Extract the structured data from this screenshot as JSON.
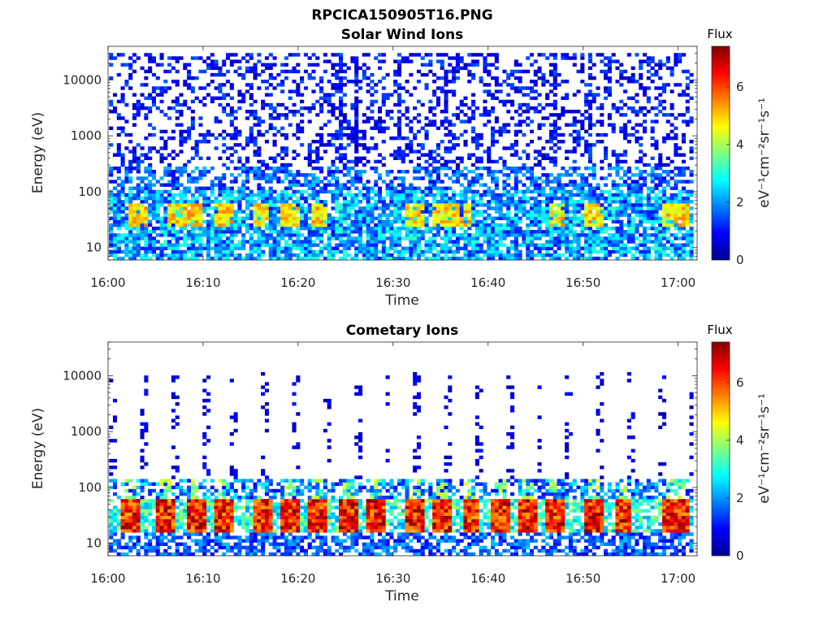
{
  "figure_title": "RPCICA150905T16.PNG",
  "colormap": [
    "#00008f",
    "#0000ff",
    "#0080ff",
    "#00ffff",
    "#80ff80",
    "#ffff00",
    "#ff8000",
    "#ff0000",
    "#800000"
  ],
  "chart_data": [
    {
      "type": "heatmap",
      "title": "Solar Wind Ions",
      "xlabel": "Time",
      "ylabel": "Energy (eV)",
      "yscale": "log",
      "ylim": [
        6,
        40000
      ],
      "xlim_minutes_after_1600": [
        0,
        62
      ],
      "x_ticks": [
        "16:00",
        "16:10",
        "16:20",
        "16:30",
        "16:40",
        "16:50",
        "17:00"
      ],
      "y_ticks": [
        "10",
        "100",
        "1000",
        "10000"
      ],
      "colorbar": {
        "title": "Flux",
        "label": "eV⁻¹cm⁻²sr⁻¹s⁻¹",
        "range": [
          0,
          7.4
        ],
        "ticks": [
          "0",
          "2",
          "4",
          "6"
        ]
      },
      "grid": false,
      "peak_flux_bursts_at_about_35eV": [
        "16:03",
        "16:07",
        "16:09",
        "16:12",
        "16:16",
        "16:19",
        "16:22",
        "16:32",
        "16:35",
        "16:37",
        "16:47",
        "16:51",
        "16:59",
        "17:00"
      ],
      "background": "sparse low-level flux (0-2) extending up to ~30000 eV"
    },
    {
      "type": "heatmap",
      "title": "Cometary Ions",
      "xlabel": "Time",
      "ylabel": "Energy (eV)",
      "yscale": "log",
      "ylim": [
        6,
        40000
      ],
      "xlim_minutes_after_1600": [
        0,
        62
      ],
      "x_ticks": [
        "16:00",
        "16:10",
        "16:20",
        "16:30",
        "16:40",
        "16:50",
        "17:00"
      ],
      "y_ticks": [
        "10",
        "100",
        "1000",
        "10000"
      ],
      "colorbar": {
        "title": "Flux",
        "label": "eV⁻¹cm⁻²sr⁻¹s⁻¹",
        "range": [
          0,
          7.4
        ],
        "ticks": [
          "0",
          "2",
          "4",
          "6"
        ]
      },
      "grid": false,
      "peak_flux_bursts_at_about_30eV": [
        "16:02",
        "16:06",
        "16:09",
        "16:12",
        "16:16",
        "16:19",
        "16:22",
        "16:25",
        "16:28",
        "16:32",
        "16:35",
        "16:38",
        "16:41",
        "16:44",
        "16:47",
        "16:51",
        "16:54",
        "16:59",
        "17:00"
      ],
      "background": "periodic vertical streaks of low flux between ~200 and ~10000 eV"
    }
  ]
}
